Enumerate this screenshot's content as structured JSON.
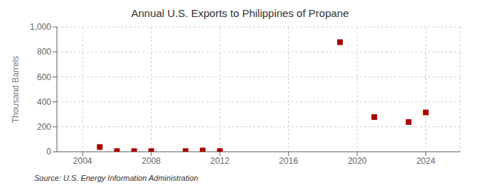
{
  "chart_data": {
    "type": "scatter",
    "title": "Annual U.S. Exports to Philippines of Propane",
    "y_label": "Thousand Barrels",
    "annotation": "Source: U.S. Energy Information Administration",
    "x": [
      2005,
      2006,
      2007,
      2008,
      2010,
      2011,
      2012,
      2019,
      2021,
      2023,
      2024
    ],
    "values": [
      38,
      5,
      5,
      5,
      5,
      10,
      5,
      878,
      278,
      238,
      315
    ],
    "color": "#aa0000",
    "marker": "square",
    "xlim": [
      2002.5,
      2026
    ],
    "xticks": [
      2004,
      2008,
      2012,
      2016,
      2020,
      2024
    ],
    "ylim": [
      0,
      1000
    ],
    "yticks": [
      0,
      200,
      400,
      600,
      800,
      {
        "value": 1000,
        "label": "1,000"
      }
    ],
    "grid": true
  }
}
